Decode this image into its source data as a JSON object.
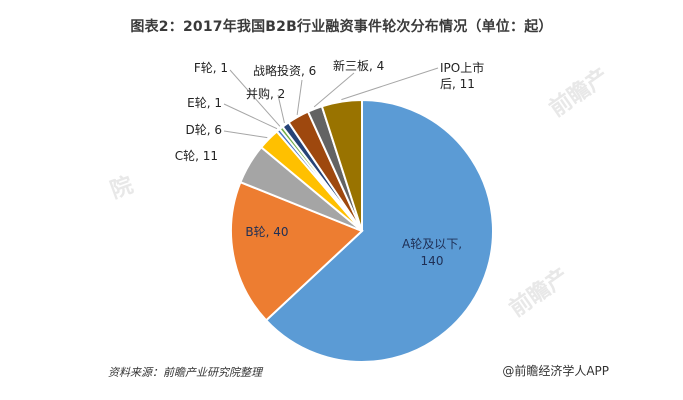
{
  "title": "图表2：2017年我国B2B行业融资事件轮次分布情况（单位：起）",
  "footer": {
    "source": "资料来源：前瞻产业研究院整理",
    "brand": "@前瞻经济学人APP"
  },
  "watermarks": [
    "前瞻产业研究院",
    "前瞻产",
    "前瞻产",
    "院"
  ],
  "chart_data": {
    "type": "pie",
    "title": "图表2：2017年我国B2B行业融资事件轮次分布情况（单位：起）",
    "unit": "起",
    "slices": [
      {
        "name": "A轮及以下",
        "value": 140,
        "color": "#5b9bd5",
        "label": "A轮及以下,\n140"
      },
      {
        "name": "B轮",
        "value": 40,
        "color": "#ed7d31",
        "label": "B轮, 40"
      },
      {
        "name": "C轮",
        "value": 11,
        "color": "#a5a5a5",
        "label": "C轮, 11"
      },
      {
        "name": "D轮",
        "value": 6,
        "color": "#ffc000",
        "label": "D轮, 6"
      },
      {
        "name": "E轮",
        "value": 1,
        "color": "#4472c4",
        "label": "E轮, 1"
      },
      {
        "name": "F轮",
        "value": 1,
        "color": "#70ad47",
        "label": "F轮, 1"
      },
      {
        "name": "并购",
        "value": 2,
        "color": "#264478",
        "label": "并购, 2"
      },
      {
        "name": "战略投资",
        "value": 6,
        "color": "#9e480e",
        "label": "战略投资, 6"
      },
      {
        "name": "新三板",
        "value": 4,
        "color": "#636363",
        "label": "新三板, 4"
      },
      {
        "name": "IPO上市后",
        "value": 11,
        "color": "#997300",
        "label": "IPO上市\n后, 11"
      }
    ]
  }
}
